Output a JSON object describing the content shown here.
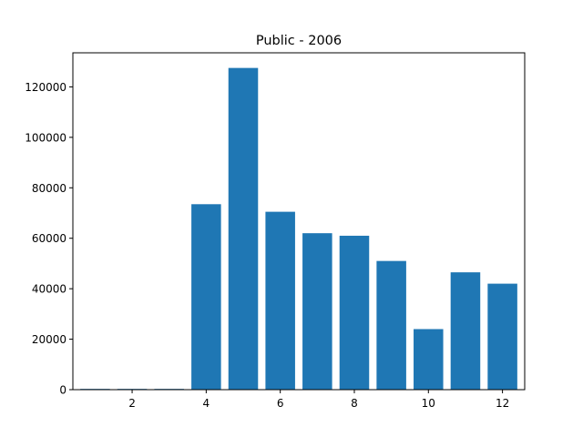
{
  "chart_data": {
    "type": "bar",
    "title": "Public - 2006",
    "xlabel": "",
    "ylabel": "",
    "x": [
      1,
      2,
      3,
      4,
      5,
      6,
      7,
      8,
      9,
      10,
      11,
      12
    ],
    "values": [
      300,
      300,
      300,
      73500,
      127500,
      70500,
      62000,
      61000,
      51000,
      24000,
      46500,
      42000
    ],
    "xlim": [
      0.4,
      12.6
    ],
    "ylim": [
      0,
      133500
    ],
    "xticks": [
      2,
      4,
      6,
      8,
      10,
      12
    ],
    "yticks": [
      0,
      20000,
      40000,
      60000,
      80000,
      100000,
      120000
    ],
    "bar_color": "#1f77b4",
    "grid": false,
    "legend": "none"
  }
}
